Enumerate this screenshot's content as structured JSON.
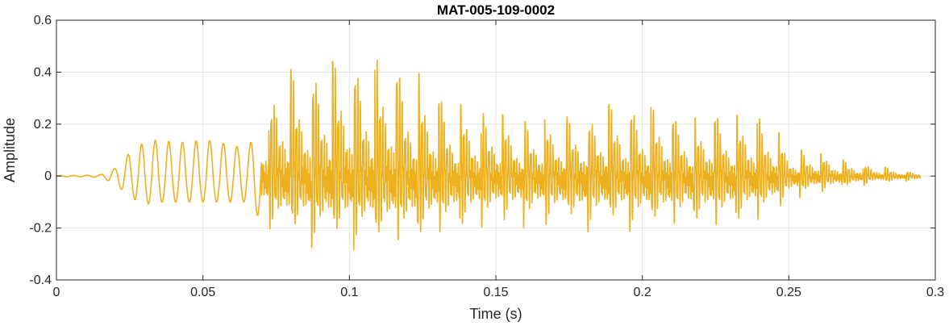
{
  "chart_data": {
    "type": "line",
    "title": "MAT-005-109-0002",
    "xlabel": "Time (s)",
    "ylabel": "Amplitude",
    "xlim": [
      0,
      0.3
    ],
    "ylim": [
      -0.4,
      0.6
    ],
    "xticks": [
      0,
      0.05,
      0.1,
      0.15,
      0.2,
      0.25,
      0.3
    ],
    "xtick_labels": [
      "0",
      "0.05",
      "0.1",
      "0.15",
      "0.2",
      "0.25",
      "0.3"
    ],
    "yticks": [
      -0.4,
      -0.2,
      0,
      0.2,
      0.4,
      0.6
    ],
    "ytick_labels": [
      "-0.4",
      "-0.2",
      "0",
      "0.2",
      "0.4",
      "0.6"
    ],
    "grid": true,
    "legend": "none",
    "line_color": "#EDB120",
    "series": [
      {
        "x_start": 0,
        "x_end": 0.295,
        "envelope": {
          "x": [
            0,
            0.01,
            0.015,
            0.02,
            0.025,
            0.03,
            0.035,
            0.04,
            0.045,
            0.05,
            0.055,
            0.06,
            0.065,
            0.07,
            0.075,
            0.08,
            0.085,
            0.09,
            0.095,
            0.1,
            0.105,
            0.11,
            0.115,
            0.12,
            0.125,
            0.13,
            0.135,
            0.14,
            0.145,
            0.15,
            0.155,
            0.16,
            0.165,
            0.17,
            0.175,
            0.18,
            0.185,
            0.19,
            0.195,
            0.2,
            0.205,
            0.21,
            0.215,
            0.22,
            0.225,
            0.23,
            0.235,
            0.24,
            0.245,
            0.25,
            0.255,
            0.26,
            0.265,
            0.27,
            0.275,
            0.28,
            0.285,
            0.29,
            0.295
          ],
          "upper": [
            0.002,
            0.003,
            0.005,
            0.03,
            0.09,
            0.13,
            0.14,
            0.13,
            0.13,
            0.14,
            0.13,
            0.12,
            0.1,
            0.21,
            0.38,
            0.41,
            0.42,
            0.45,
            0.44,
            0.45,
            0.44,
            0.45,
            0.44,
            0.41,
            0.39,
            0.31,
            0.27,
            0.28,
            0.24,
            0.25,
            0.22,
            0.21,
            0.22,
            0.21,
            0.23,
            0.24,
            0.26,
            0.28,
            0.29,
            0.27,
            0.26,
            0.25,
            0.23,
            0.22,
            0.24,
            0.22,
            0.25,
            0.22,
            0.2,
            0.1,
            0.1,
            0.09,
            0.07,
            0.06,
            0.05,
            0.04,
            0.03,
            0.02,
            0.01
          ],
          "lower": [
            -0.002,
            -0.003,
            -0.005,
            -0.03,
            -0.08,
            -0.11,
            -0.1,
            -0.1,
            -0.1,
            -0.1,
            -0.1,
            -0.1,
            -0.1,
            -0.17,
            -0.25,
            -0.28,
            -0.27,
            -0.3,
            -0.29,
            -0.28,
            -0.29,
            -0.3,
            -0.3,
            -0.29,
            -0.28,
            -0.25,
            -0.24,
            -0.22,
            -0.21,
            -0.2,
            -0.19,
            -0.2,
            -0.2,
            -0.21,
            -0.22,
            -0.23,
            -0.22,
            -0.22,
            -0.21,
            -0.23,
            -0.22,
            -0.23,
            -0.21,
            -0.22,
            -0.22,
            -0.21,
            -0.2,
            -0.18,
            -0.16,
            -0.1,
            -0.08,
            -0.07,
            -0.06,
            -0.05,
            -0.04,
            -0.03,
            -0.03,
            -0.02,
            -0.02
          ]
        }
      }
    ]
  }
}
